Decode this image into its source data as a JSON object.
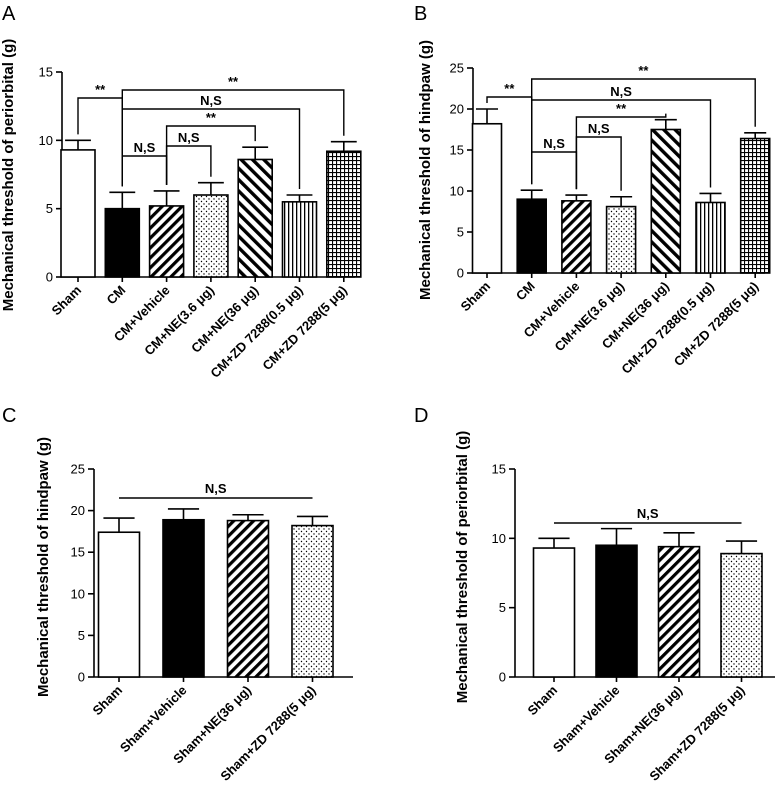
{
  "chart_data": [
    {
      "panel": "A",
      "type": "bar",
      "ylabel": "Mechanical threshold of periorbital (g)",
      "ylim": [
        0,
        15
      ],
      "yticks": [
        0,
        5,
        10,
        15
      ],
      "categories": [
        "Sham",
        "CM",
        "CM+Vehicle",
        "CM+NE(3.6 μg)",
        "CM+NE(36 μg)",
        "CM+ZD 7288(0.5 μg)",
        "CM+ZD 7288(5 μg)"
      ],
      "values": [
        9.3,
        5.0,
        5.2,
        6.0,
        8.6,
        5.5,
        9.2
      ],
      "errors": [
        0.7,
        1.2,
        1.1,
        0.9,
        0.9,
        0.5,
        0.7
      ],
      "patterns": [
        "white",
        "black",
        "diag",
        "dots",
        "diag-wide",
        "vlines",
        "grid"
      ],
      "comparisons": [
        {
          "from": 0,
          "to": 1,
          "label": "**"
        },
        {
          "from": 1,
          "to": 2,
          "label": "N,S"
        },
        {
          "from": 2,
          "to": 3,
          "label": "N,S"
        },
        {
          "from": 2,
          "to": 4,
          "label": "**"
        },
        {
          "from": 1,
          "to": 5,
          "label": "N,S"
        },
        {
          "from": 1,
          "to": 6,
          "label": "**"
        }
      ]
    },
    {
      "panel": "B",
      "type": "bar",
      "ylabel": "Mechanical threshold of hindpaw (g)",
      "ylim": [
        0,
        25
      ],
      "yticks": [
        0,
        5,
        10,
        15,
        20,
        25
      ],
      "categories": [
        "Sham",
        "CM",
        "CM+Vehicle",
        "CM+NE(3.6 μg)",
        "CM+NE(36 μg)",
        "CM+ZD 7288(0.5 μg)",
        "CM+ZD 7288(5 μg)"
      ],
      "values": [
        18.2,
        9.0,
        8.8,
        8.1,
        17.5,
        8.6,
        16.4
      ],
      "errors": [
        1.8,
        1.1,
        0.7,
        1.2,
        1.2,
        1.1,
        0.7
      ],
      "patterns": [
        "white",
        "black",
        "diag",
        "dots",
        "diag-wide",
        "vlines",
        "grid"
      ],
      "comparisons": [
        {
          "from": 0,
          "to": 1,
          "label": "**"
        },
        {
          "from": 1,
          "to": 2,
          "label": "N,S"
        },
        {
          "from": 2,
          "to": 3,
          "label": "N,S"
        },
        {
          "from": 2,
          "to": 4,
          "label": "**"
        },
        {
          "from": 1,
          "to": 5,
          "label": "N,S"
        },
        {
          "from": 1,
          "to": 6,
          "label": "**"
        }
      ]
    },
    {
      "panel": "C",
      "type": "bar",
      "ylabel": "Mechanical threshold of hindpaw (g)",
      "ylim": [
        0,
        25
      ],
      "yticks": [
        0,
        5,
        10,
        15,
        20,
        25
      ],
      "categories": [
        "Sham",
        "Sham+Vehicle",
        "Sham+NE(36 μg)",
        "Sham+ZD 7288(5 μg)"
      ],
      "values": [
        17.4,
        18.9,
        18.8,
        18.2
      ],
      "errors": [
        1.7,
        1.3,
        0.7,
        1.1
      ],
      "patterns": [
        "white",
        "black",
        "diag",
        "dots"
      ],
      "overall": "N,S"
    },
    {
      "panel": "D",
      "type": "bar",
      "ylabel": "Mechanical threshold of periorbital (g)",
      "ylim": [
        0,
        15
      ],
      "yticks": [
        0,
        5,
        10,
        15
      ],
      "categories": [
        "Sham",
        "Sham+Vehicle",
        "Sham+NE(36 μg)",
        "Sham+ZD 7288(5 μg)"
      ],
      "values": [
        9.3,
        9.5,
        9.4,
        8.9
      ],
      "errors": [
        0.7,
        1.2,
        1.0,
        0.9
      ],
      "patterns": [
        "white",
        "black",
        "diag",
        "dots"
      ],
      "overall": "N,S"
    }
  ]
}
